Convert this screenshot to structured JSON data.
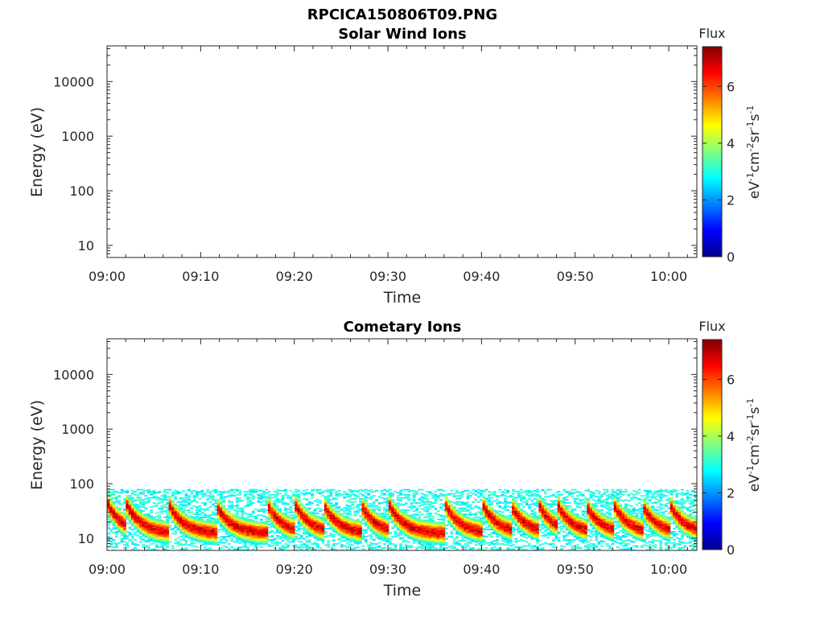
{
  "figure_title": "RPCICA150806T09.PNG",
  "chart_data": [
    {
      "type": "heatmap",
      "title": "Solar Wind Ions",
      "xlabel": "Time",
      "ylabel": "Energy (eV)",
      "x_ticks": [
        "09:00",
        "09:10",
        "09:20",
        "09:30",
        "09:40",
        "09:50",
        "10:00"
      ],
      "y_ticks": [
        "10",
        "100",
        "1000",
        "10000"
      ],
      "y_scale": "log",
      "ylim": [
        6,
        45000
      ],
      "xlim": [
        "09:00",
        "10:03"
      ],
      "colorbar": {
        "label": "Flux",
        "units": "eV-1cm-2sr-1s-1",
        "ticks": [
          "0",
          "2",
          "4",
          "6"
        ],
        "range": [
          0,
          7.4
        ]
      },
      "data": []
    },
    {
      "type": "heatmap",
      "title": "Cometary Ions",
      "xlabel": "Time",
      "ylabel": "Energy (eV)",
      "x_ticks": [
        "09:00",
        "09:10",
        "09:20",
        "09:30",
        "09:40",
        "09:50",
        "10:00"
      ],
      "y_ticks": [
        "10",
        "100",
        "1000",
        "10000"
      ],
      "y_scale": "log",
      "ylim": [
        6,
        45000
      ],
      "xlim": [
        "09:00",
        "10:03"
      ],
      "colorbar": {
        "label": "Flux",
        "units": "eV-1cm-2sr-1s-1",
        "ticks": [
          "0",
          "2",
          "4",
          "6"
        ],
        "range": [
          0,
          7.4
        ]
      },
      "peak_flux_minutes": [
        0,
        2,
        6.5,
        11.5,
        17,
        20,
        23,
        27,
        30,
        36,
        40,
        43,
        46,
        48,
        51,
        54,
        57,
        60
      ],
      "peak_flux_energy_ev_range": [
        12,
        40
      ],
      "max_flux": 7.2,
      "background_energy_ev_range": [
        6,
        80
      ],
      "background_flux": 2.5
    }
  ],
  "colors": {
    "axis": "#262626",
    "cmap": "jet"
  }
}
